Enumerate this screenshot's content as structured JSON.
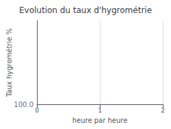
{
  "chart_data": {
    "type": "line",
    "title": "Evolution du taux d'hygrométrie",
    "xlabel": "heure par heure",
    "ylabel": "Taux hygrométrie %",
    "xlim": [
      0,
      2
    ],
    "xticks": [
      0,
      1,
      2
    ],
    "annotations": [
      {
        "text": "100.0"
      }
    ],
    "grid": true,
    "tick_labels": "x"
  }
}
